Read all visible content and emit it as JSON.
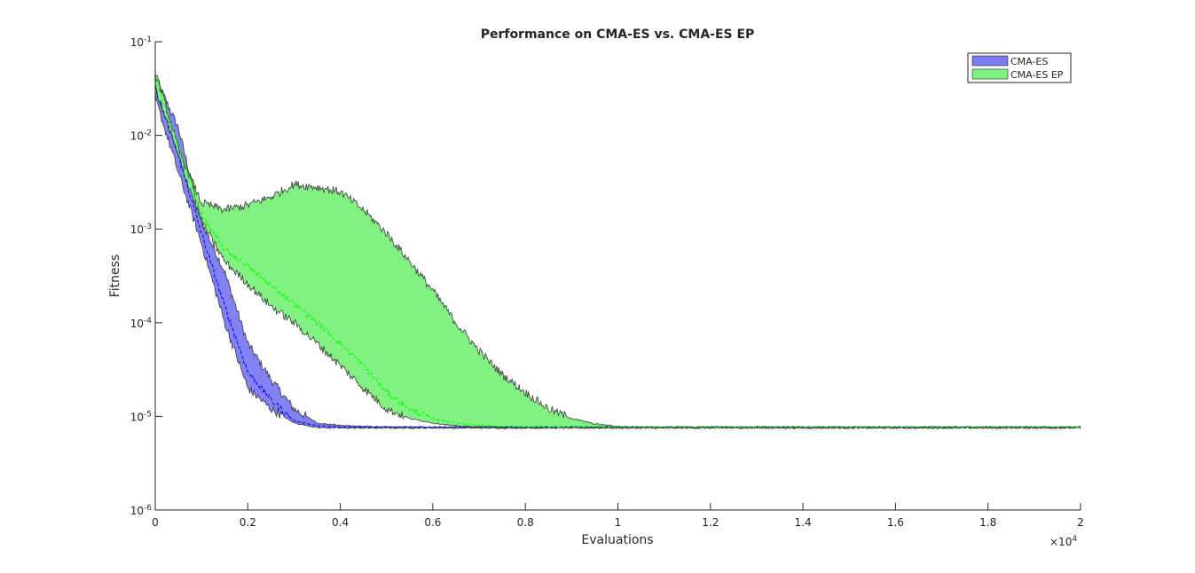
{
  "chart_data": {
    "type": "area",
    "title": "Performance on CMA-ES vs. CMA-ES EP",
    "xlabel": "Evaluations",
    "ylabel": "Fitness",
    "x_multiplier": "×10",
    "x_multiplier_exp": "4",
    "xlim": [
      0,
      2
    ],
    "ylim": [
      1e-06,
      0.1
    ],
    "yscale": "log",
    "x_ticks": [
      0,
      0.2,
      0.4,
      0.6,
      0.8,
      1,
      1.2,
      1.4,
      1.6,
      1.8,
      2
    ],
    "x_tick_labels": [
      "0",
      "0.2",
      "0.4",
      "0.6",
      "0.8",
      "1",
      "1.2",
      "1.4",
      "1.6",
      "1.8",
      "2"
    ],
    "y_ticks": [
      {
        "value": 0.1,
        "base": "10",
        "exp": "-1"
      },
      {
        "value": 0.01,
        "base": "10",
        "exp": "-2"
      },
      {
        "value": 0.001,
        "base": "10",
        "exp": "-3"
      },
      {
        "value": 0.0001,
        "base": "10",
        "exp": "-4"
      },
      {
        "value": 1e-05,
        "base": "10",
        "exp": "-5"
      },
      {
        "value": 1e-06,
        "base": "10",
        "exp": "-6"
      }
    ],
    "grid": false,
    "legend_position": "top-right",
    "series": [
      {
        "name": "CMA-ES",
        "color": "#0000ff",
        "fill": "#7b7bf2",
        "x": [
          0,
          0.05,
          0.1,
          0.15,
          0.2,
          0.25,
          0.3,
          0.35,
          0.4,
          0.5,
          0.6,
          0.8,
          1.0,
          2.0
        ],
        "upper": [
          0.042,
          0.012,
          0.0012,
          0.00035,
          6e-05,
          2.5e-05,
          1.2e-05,
          8.5e-06,
          8e-06,
          7.7e-06,
          7.7e-06,
          7.7e-06,
          7.7e-06,
          7.7e-06
        ],
        "mean": [
          0.032,
          0.006,
          0.0009,
          0.00015,
          3e-05,
          1.5e-05,
          9e-06,
          7.9e-06,
          7.7e-06,
          7.7e-06,
          7.7e-06,
          7.7e-06,
          7.7e-06,
          7.7e-06
        ],
        "lower": [
          0.025,
          0.004,
          0.0007,
          0.0001,
          2e-05,
          1.2e-05,
          8.5e-06,
          7.6e-06,
          7.5e-06,
          7.5e-06,
          7.5e-06,
          7.5e-06,
          7.5e-06,
          7.5e-06
        ]
      },
      {
        "name": "CMA-ES EP",
        "color": "#00ff00",
        "fill": "#7ef27e",
        "x": [
          0,
          0.05,
          0.1,
          0.15,
          0.2,
          0.25,
          0.3,
          0.35,
          0.4,
          0.45,
          0.5,
          0.55,
          0.6,
          0.65,
          0.7,
          0.75,
          0.8,
          0.85,
          0.9,
          0.95,
          1.0,
          1.05,
          1.1,
          2.0
        ],
        "upper": [
          0.05,
          0.007,
          0.0019,
          0.0016,
          0.0018,
          0.0022,
          0.003,
          0.0028,
          0.0025,
          0.0016,
          0.0009,
          0.00045,
          0.00022,
          0.0001,
          5e-05,
          2.8e-05,
          1.8e-05,
          1.2e-05,
          9.5e-06,
          8.3e-06,
          7.8e-06,
          7.7e-06,
          7.7e-06,
          7.7e-06
        ],
        "mean": [
          0.04,
          0.008,
          0.0014,
          0.0006,
          0.0004,
          0.00025,
          0.00016,
          0.0001,
          6e-05,
          3.5e-05,
          1.8e-05,
          1.2e-05,
          9.5e-06,
          8.5e-06,
          8e-06,
          7.8e-06,
          7.7e-06,
          7.7e-06,
          7.7e-06,
          7.7e-06,
          7.7e-06,
          7.7e-06,
          7.7e-06,
          7.7e-06
        ],
        "lower": [
          0.032,
          0.006,
          0.0012,
          0.00045,
          0.00026,
          0.00015,
          0.0001,
          6e-05,
          3.5e-05,
          2e-05,
          1.2e-05,
          9.5e-06,
          8.5e-06,
          7.9e-06,
          7.7e-06,
          7.6e-06,
          7.6e-06,
          7.6e-06,
          7.6e-06,
          7.6e-06,
          7.6e-06,
          7.6e-06,
          7.6e-06,
          7.6e-06
        ]
      }
    ]
  }
}
